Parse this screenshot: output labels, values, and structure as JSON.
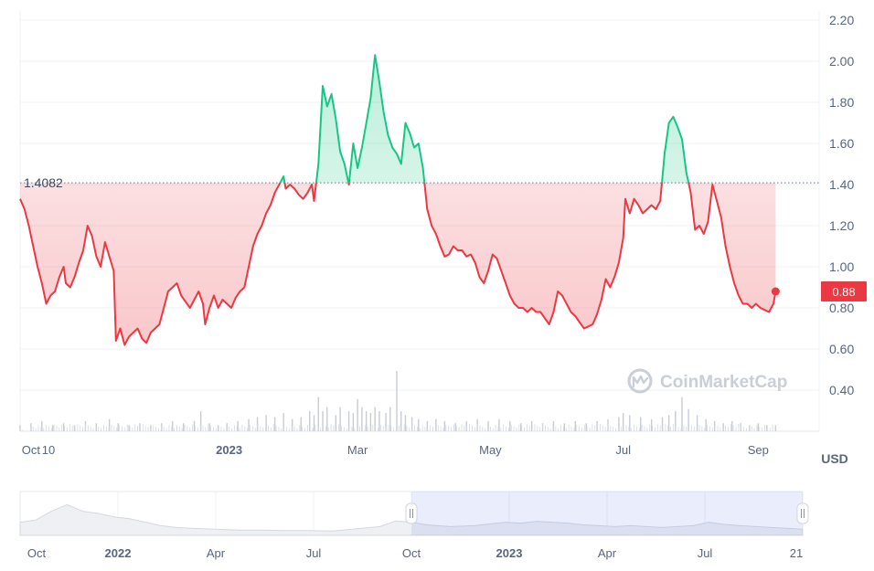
{
  "chart_data": {
    "type": "area",
    "unit": "USD",
    "y_axis": {
      "ticks": [
        "2.20",
        "2.00",
        "1.80",
        "1.60",
        "1.40",
        "1.20",
        "1.00",
        "0.80",
        "0.60",
        "0.40"
      ],
      "ylim": [
        0.2,
        2.2
      ]
    },
    "x_axis": {
      "ticks": [
        {
          "label": "Oct",
          "x": 0,
          "bold": false
        },
        {
          "label": "10",
          "x": 8,
          "bold": false
        },
        {
          "label": "2023",
          "x": 91,
          "bold": true
        },
        {
          "label": "Mar",
          "x": 150,
          "bold": false
        },
        {
          "label": "May",
          "x": 211,
          "bold": false
        },
        {
          "label": "Jul",
          "x": 272,
          "bold": false
        },
        {
          "label": "Sep",
          "x": 334,
          "bold": false
        }
      ],
      "xlim": [
        -5,
        362
      ]
    },
    "reference": {
      "label": "1.4082",
      "value": 1.4082,
      "color": "#3f4a5c"
    },
    "current": {
      "label": "0.88",
      "value": 0.88,
      "color": "#ea3943"
    },
    "colors": {
      "up": "#16c784",
      "down": "#ea3943",
      "grid": "#eff2f5"
    },
    "series": [
      {
        "points": [
          [
            -5,
            1.33
          ],
          [
            -3,
            1.28
          ],
          [
            -1,
            1.2
          ],
          [
            1,
            1.1
          ],
          [
            3,
            1.0
          ],
          [
            5,
            0.92
          ],
          [
            7,
            0.82
          ],
          [
            9,
            0.86
          ],
          [
            11,
            0.88
          ],
          [
            13,
            0.95
          ],
          [
            15,
            1.0
          ],
          [
            16,
            0.92
          ],
          [
            18,
            0.9
          ],
          [
            20,
            0.95
          ],
          [
            22,
            1.02
          ],
          [
            24,
            1.08
          ],
          [
            26,
            1.2
          ],
          [
            28,
            1.15
          ],
          [
            30,
            1.05
          ],
          [
            32,
            1.0
          ],
          [
            34,
            1.12
          ],
          [
            36,
            1.05
          ],
          [
            38,
            0.98
          ],
          [
            39,
            0.64
          ],
          [
            41,
            0.7
          ],
          [
            43,
            0.62
          ],
          [
            45,
            0.66
          ],
          [
            47,
            0.68
          ],
          [
            49,
            0.7
          ],
          [
            51,
            0.65
          ],
          [
            53,
            0.63
          ],
          [
            55,
            0.68
          ],
          [
            57,
            0.7
          ],
          [
            59,
            0.72
          ],
          [
            61,
            0.8
          ],
          [
            63,
            0.88
          ],
          [
            65,
            0.9
          ],
          [
            67,
            0.92
          ],
          [
            69,
            0.86
          ],
          [
            71,
            0.83
          ],
          [
            73,
            0.8
          ],
          [
            75,
            0.84
          ],
          [
            77,
            0.88
          ],
          [
            79,
            0.82
          ],
          [
            80,
            0.72
          ],
          [
            82,
            0.8
          ],
          [
            84,
            0.86
          ],
          [
            86,
            0.8
          ],
          [
            88,
            0.84
          ],
          [
            90,
            0.82
          ],
          [
            92,
            0.8
          ],
          [
            94,
            0.85
          ],
          [
            96,
            0.88
          ],
          [
            98,
            0.9
          ],
          [
            100,
            1.0
          ],
          [
            102,
            1.1
          ],
          [
            104,
            1.16
          ],
          [
            106,
            1.2
          ],
          [
            108,
            1.26
          ],
          [
            110,
            1.3
          ],
          [
            112,
            1.36
          ],
          [
            114,
            1.4
          ],
          [
            116,
            1.44
          ],
          [
            117,
            1.38
          ],
          [
            119,
            1.4
          ],
          [
            121,
            1.38
          ],
          [
            123,
            1.35
          ],
          [
            125,
            1.33
          ],
          [
            127,
            1.36
          ],
          [
            129,
            1.4
          ],
          [
            130,
            1.32
          ],
          [
            132,
            1.5
          ],
          [
            134,
            1.88
          ],
          [
            136,
            1.78
          ],
          [
            138,
            1.84
          ],
          [
            140,
            1.72
          ],
          [
            142,
            1.56
          ],
          [
            144,
            1.5
          ],
          [
            146,
            1.4
          ],
          [
            148,
            1.6
          ],
          [
            150,
            1.48
          ],
          [
            152,
            1.58
          ],
          [
            154,
            1.7
          ],
          [
            156,
            1.82
          ],
          [
            158,
            2.03
          ],
          [
            160,
            1.9
          ],
          [
            162,
            1.75
          ],
          [
            164,
            1.64
          ],
          [
            166,
            1.58
          ],
          [
            168,
            1.55
          ],
          [
            170,
            1.5
          ],
          [
            172,
            1.7
          ],
          [
            174,
            1.65
          ],
          [
            176,
            1.58
          ],
          [
            178,
            1.6
          ],
          [
            180,
            1.48
          ],
          [
            182,
            1.28
          ],
          [
            184,
            1.2
          ],
          [
            186,
            1.16
          ],
          [
            188,
            1.1
          ],
          [
            190,
            1.05
          ],
          [
            192,
            1.06
          ],
          [
            194,
            1.1
          ],
          [
            196,
            1.08
          ],
          [
            198,
            1.08
          ],
          [
            200,
            1.05
          ],
          [
            202,
            1.06
          ],
          [
            204,
            1.02
          ],
          [
            206,
            0.95
          ],
          [
            208,
            0.92
          ],
          [
            210,
            0.98
          ],
          [
            212,
            1.06
          ],
          [
            214,
            1.04
          ],
          [
            216,
            0.98
          ],
          [
            218,
            0.92
          ],
          [
            220,
            0.86
          ],
          [
            222,
            0.82
          ],
          [
            224,
            0.8
          ],
          [
            226,
            0.8
          ],
          [
            228,
            0.78
          ],
          [
            230,
            0.8
          ],
          [
            232,
            0.78
          ],
          [
            234,
            0.78
          ],
          [
            236,
            0.75
          ],
          [
            238,
            0.72
          ],
          [
            240,
            0.78
          ],
          [
            242,
            0.88
          ],
          [
            244,
            0.86
          ],
          [
            246,
            0.82
          ],
          [
            248,
            0.78
          ],
          [
            250,
            0.76
          ],
          [
            252,
            0.73
          ],
          [
            254,
            0.7
          ],
          [
            256,
            0.71
          ],
          [
            258,
            0.72
          ],
          [
            260,
            0.77
          ],
          [
            262,
            0.84
          ],
          [
            264,
            0.94
          ],
          [
            266,
            0.9
          ],
          [
            268,
            0.95
          ],
          [
            270,
            1.02
          ],
          [
            272,
            1.14
          ],
          [
            273,
            1.33
          ],
          [
            275,
            1.26
          ],
          [
            277,
            1.33
          ],
          [
            279,
            1.3
          ],
          [
            281,
            1.26
          ],
          [
            283,
            1.28
          ],
          [
            285,
            1.3
          ],
          [
            287,
            1.28
          ],
          [
            289,
            1.32
          ],
          [
            291,
            1.55
          ],
          [
            293,
            1.7
          ],
          [
            295,
            1.73
          ],
          [
            297,
            1.68
          ],
          [
            299,
            1.62
          ],
          [
            301,
            1.46
          ],
          [
            303,
            1.36
          ],
          [
            305,
            1.18
          ],
          [
            307,
            1.2
          ],
          [
            309,
            1.16
          ],
          [
            311,
            1.22
          ],
          [
            313,
            1.4
          ],
          [
            315,
            1.32
          ],
          [
            317,
            1.24
          ],
          [
            319,
            1.1
          ],
          [
            321,
            1.0
          ],
          [
            323,
            0.92
          ],
          [
            325,
            0.86
          ],
          [
            327,
            0.82
          ],
          [
            329,
            0.82
          ],
          [
            331,
            0.8
          ],
          [
            333,
            0.82
          ],
          [
            335,
            0.8
          ],
          [
            337,
            0.79
          ],
          [
            339,
            0.78
          ],
          [
            341,
            0.82
          ],
          [
            342,
            0.88
          ]
        ]
      }
    ],
    "volume": [
      [
        -5,
        0.03
      ],
      [
        0,
        0.04
      ],
      [
        5,
        0.05
      ],
      [
        10,
        0.03
      ],
      [
        15,
        0.04
      ],
      [
        20,
        0.03
      ],
      [
        25,
        0.05
      ],
      [
        30,
        0.04
      ],
      [
        36,
        0.06
      ],
      [
        40,
        0.04
      ],
      [
        45,
        0.03
      ],
      [
        50,
        0.04
      ],
      [
        55,
        0.03
      ],
      [
        60,
        0.04
      ],
      [
        65,
        0.05
      ],
      [
        70,
        0.04
      ],
      [
        75,
        0.05
      ],
      [
        78,
        0.1
      ],
      [
        82,
        0.04
      ],
      [
        86,
        0.03
      ],
      [
        90,
        0.04
      ],
      [
        95,
        0.05
      ],
      [
        100,
        0.06
      ],
      [
        104,
        0.07
      ],
      [
        108,
        0.08
      ],
      [
        112,
        0.07
      ],
      [
        116,
        0.09
      ],
      [
        120,
        0.06
      ],
      [
        124,
        0.07
      ],
      [
        128,
        0.1
      ],
      [
        130,
        0.08
      ],
      [
        132,
        0.17
      ],
      [
        134,
        0.1
      ],
      [
        136,
        0.12
      ],
      [
        140,
        0.08
      ],
      [
        142,
        0.12
      ],
      [
        146,
        0.1
      ],
      [
        148,
        0.09
      ],
      [
        150,
        0.16
      ],
      [
        152,
        0.12
      ],
      [
        154,
        0.1
      ],
      [
        156,
        0.09
      ],
      [
        158,
        0.12
      ],
      [
        160,
        0.1
      ],
      [
        163,
        0.09
      ],
      [
        165,
        0.12
      ],
      [
        168,
        0.3
      ],
      [
        170,
        0.1
      ],
      [
        172,
        0.08
      ],
      [
        175,
        0.07
      ],
      [
        178,
        0.06
      ],
      [
        182,
        0.05
      ],
      [
        186,
        0.06
      ],
      [
        190,
        0.05
      ],
      [
        195,
        0.04
      ],
      [
        200,
        0.05
      ],
      [
        205,
        0.06
      ],
      [
        210,
        0.05
      ],
      [
        215,
        0.06
      ],
      [
        220,
        0.05
      ],
      [
        225,
        0.04
      ],
      [
        230,
        0.05
      ],
      [
        235,
        0.04
      ],
      [
        240,
        0.05
      ],
      [
        245,
        0.04
      ],
      [
        250,
        0.05
      ],
      [
        255,
        0.04
      ],
      [
        260,
        0.05
      ],
      [
        265,
        0.06
      ],
      [
        270,
        0.07
      ],
      [
        272,
        0.09
      ],
      [
        275,
        0.08
      ],
      [
        280,
        0.07
      ],
      [
        285,
        0.06
      ],
      [
        290,
        0.07
      ],
      [
        293,
        0.08
      ],
      [
        296,
        0.1
      ],
      [
        299,
        0.17
      ],
      [
        302,
        0.11
      ],
      [
        306,
        0.08
      ],
      [
        310,
        0.06
      ],
      [
        314,
        0.05
      ],
      [
        318,
        0.04
      ],
      [
        322,
        0.05
      ],
      [
        326,
        0.04
      ],
      [
        330,
        0.03
      ],
      [
        334,
        0.04
      ],
      [
        338,
        0.03
      ],
      [
        342,
        0.03
      ]
    ]
  },
  "navigator": {
    "ticks": [
      {
        "label": "Oct",
        "bold": false
      },
      {
        "label": "2022",
        "bold": true
      },
      {
        "label": "Apr",
        "bold": false
      },
      {
        "label": "Jul",
        "bold": false
      },
      {
        "label": "Oct",
        "bold": false
      },
      {
        "label": "2023",
        "bold": true
      },
      {
        "label": "Apr",
        "bold": false
      },
      {
        "label": "Jul",
        "bold": false
      },
      {
        "label": "21",
        "bold": false
      }
    ],
    "selected_start": 0.5,
    "selected_end": 1.0,
    "handle_icon": "drag-handle-icon",
    "history": [
      [
        0,
        0.3
      ],
      [
        0.02,
        0.35
      ],
      [
        0.04,
        0.55
      ],
      [
        0.06,
        0.7
      ],
      [
        0.08,
        0.55
      ],
      [
        0.1,
        0.5
      ],
      [
        0.12,
        0.42
      ],
      [
        0.14,
        0.38
      ],
      [
        0.16,
        0.3
      ],
      [
        0.18,
        0.22
      ],
      [
        0.2,
        0.18
      ],
      [
        0.22,
        0.16
      ],
      [
        0.25,
        0.14
      ],
      [
        0.28,
        0.12
      ],
      [
        0.31,
        0.12
      ],
      [
        0.34,
        0.11
      ],
      [
        0.37,
        0.11
      ],
      [
        0.4,
        0.1
      ],
      [
        0.43,
        0.15
      ],
      [
        0.46,
        0.2
      ],
      [
        0.48,
        0.33
      ],
      [
        0.5,
        0.3
      ],
      [
        0.52,
        0.24
      ],
      [
        0.55,
        0.2
      ],
      [
        0.58,
        0.22
      ],
      [
        0.6,
        0.26
      ],
      [
        0.62,
        0.3
      ],
      [
        0.64,
        0.28
      ],
      [
        0.66,
        0.32
      ],
      [
        0.68,
        0.3
      ],
      [
        0.7,
        0.28
      ],
      [
        0.72,
        0.24
      ],
      [
        0.74,
        0.22
      ],
      [
        0.76,
        0.2
      ],
      [
        0.78,
        0.22
      ],
      [
        0.8,
        0.2
      ],
      [
        0.82,
        0.18
      ],
      [
        0.84,
        0.2
      ],
      [
        0.86,
        0.22
      ],
      [
        0.88,
        0.3
      ],
      [
        0.9,
        0.25
      ],
      [
        0.92,
        0.22
      ],
      [
        0.94,
        0.2
      ],
      [
        0.96,
        0.18
      ],
      [
        0.98,
        0.16
      ],
      [
        1.0,
        0.14
      ]
    ]
  },
  "watermark": {
    "text": "CoinMarketCap",
    "icon": "coinmarketcap-logo-icon"
  }
}
